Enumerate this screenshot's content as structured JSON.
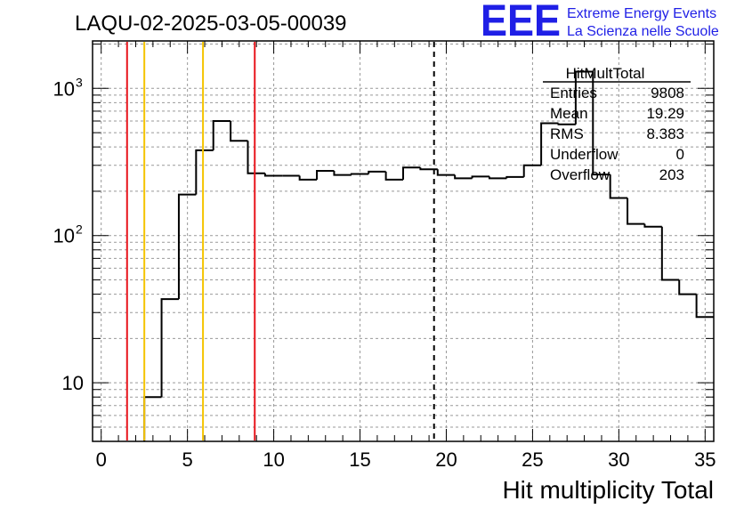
{
  "title": "LAQU-02-2025-03-05-00039",
  "logo": {
    "mark": "EEE",
    "line1": "Extreme Energy Events",
    "line2": "La Scienza nelle Scuole",
    "color": "#1f1fe6"
  },
  "stats": {
    "name": "HitMultTotal",
    "rows": [
      {
        "label": "Entries",
        "value": "9808"
      },
      {
        "label": "Mean",
        "value": "19.29"
      },
      {
        "label": "RMS",
        "value": "8.383"
      },
      {
        "label": "Underflow",
        "value": "0"
      },
      {
        "label": "Overflow",
        "value": "203"
      }
    ]
  },
  "chart_data": {
    "type": "histogram",
    "title": "LAQU-02-2025-03-05-00039",
    "xlabel": "Hit multiplicity Total",
    "ylabel": "",
    "xlim": [
      -0.5,
      35.5
    ],
    "ylim": [
      4,
      2100
    ],
    "yscale": "log",
    "grid": true,
    "x_ticks": [
      0,
      5,
      10,
      15,
      20,
      25,
      30,
      35
    ],
    "y_tick_labels": [
      {
        "value": 10,
        "label": "10"
      },
      {
        "value": 100,
        "label": "10",
        "sup": "2"
      },
      {
        "value": 1000,
        "label": "10",
        "sup": "3"
      }
    ],
    "bin_width": 1,
    "bins_x": [
      -0.5,
      0.5,
      1.5,
      2.5,
      3.5,
      4.5,
      5.5,
      6.5,
      7.5,
      8.5,
      9.5,
      10.5,
      11.5,
      12.5,
      13.5,
      14.5,
      15.5,
      16.5,
      17.5,
      18.5,
      19.5,
      20.5,
      21.5,
      22.5,
      23.5,
      24.5,
      25.5,
      26.5,
      27.5,
      28.5,
      29.5,
      30.5,
      31.5,
      32.5,
      33.5,
      34.5
    ],
    "bin_values": [
      0,
      0,
      0,
      8,
      37,
      190,
      380,
      600,
      440,
      265,
      255,
      255,
      240,
      275,
      258,
      262,
      272,
      240,
      290,
      282,
      258,
      245,
      252,
      245,
      250,
      300,
      580,
      570,
      1300,
      260,
      180,
      120,
      115,
      50,
      40,
      28
    ],
    "vertical_lines": [
      {
        "x": 1.5,
        "color": "#e8141b",
        "style": "solid"
      },
      {
        "x": 2.5,
        "color": "#f5c400",
        "style": "solid"
      },
      {
        "x": 5.9,
        "color": "#f5c400",
        "style": "solid"
      },
      {
        "x": 8.9,
        "color": "#e8141b",
        "style": "solid"
      },
      {
        "x": 19.29,
        "color": "#000000",
        "style": "dashed"
      }
    ]
  }
}
